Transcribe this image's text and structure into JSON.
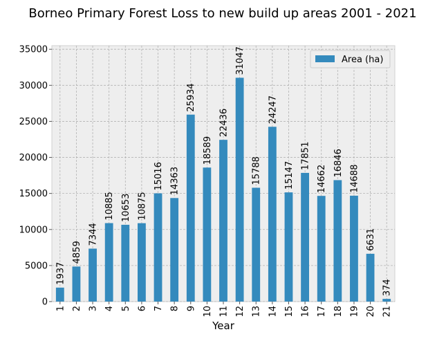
{
  "chart_data": {
    "type": "bar",
    "title": "Borneo Primary Forest Loss to new build up areas 2001 - 2021",
    "xlabel": "Year",
    "ylabel": "",
    "categories": [
      "1",
      "2",
      "3",
      "4",
      "5",
      "6",
      "7",
      "8",
      "9",
      "10",
      "11",
      "12",
      "13",
      "14",
      "15",
      "16",
      "17",
      "18",
      "19",
      "20",
      "21"
    ],
    "series": [
      {
        "name": "Area (ha)",
        "color": "#348abd",
        "values": [
          1937,
          4859,
          7344,
          10885,
          10653,
          10875,
          15016,
          14363,
          25934,
          18589,
          22436,
          31047,
          15788,
          24247,
          15147,
          17851,
          14662,
          16846,
          14688,
          6631,
          374
        ]
      }
    ],
    "ylim": [
      0,
      35500
    ],
    "yticks": [
      0,
      5000,
      10000,
      15000,
      20000,
      25000,
      30000,
      35000
    ],
    "grid": true,
    "legend_position": "top-right",
    "data_labels": true,
    "colors": {
      "plot_background": "#eeeeee",
      "grid": "#b2b2b2",
      "bar": "#348abd"
    }
  }
}
